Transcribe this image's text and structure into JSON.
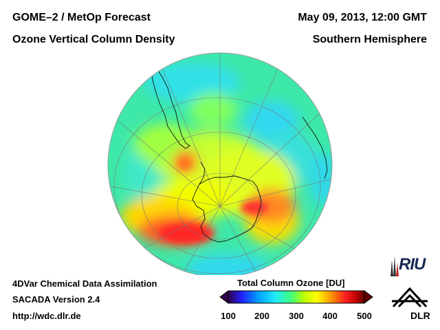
{
  "header": {
    "title_line1": "GOME–2 / MetOp Forecast",
    "title_line2": "Ozone Vertical Column Density",
    "date": "May 09, 2013, 12:00 GMT",
    "region": "Southern Hemisphere"
  },
  "footer": {
    "line1": "4DVar Chemical Data Assimilation",
    "line2": "SACADA Version 2.4",
    "line3": "http://wdc.dlr.de"
  },
  "colorbar": {
    "title": "Total Column Ozone [DU]",
    "min": 100,
    "max": 500,
    "ticks": [
      "100",
      "200",
      "300",
      "400",
      "500"
    ],
    "stops": [
      "#30004a",
      "#2020ff",
      "#00a0ff",
      "#20e8ff",
      "#40ff80",
      "#c0ff00",
      "#ffff00",
      "#ff9000",
      "#ff2020",
      "#c00000",
      "#600000"
    ]
  },
  "logos": {
    "riu": "RIU",
    "dlr": "DLR"
  },
  "map": {
    "projection": "orthographic, south pole centered",
    "background_color": "#40e8b0"
  }
}
